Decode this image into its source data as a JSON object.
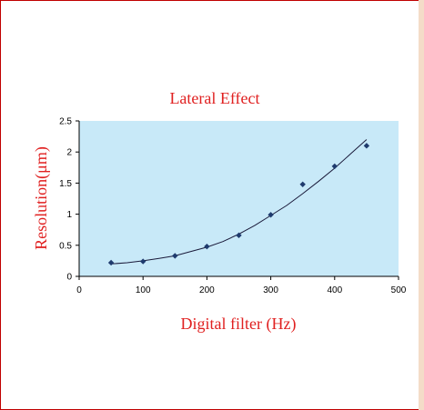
{
  "chart_data": {
    "type": "scatter",
    "title": "Lateral Effect",
    "xlabel": "Digital filter (Hz)",
    "ylabel": "Resolution(μm)",
    "xlim": [
      0,
      500
    ],
    "ylim": [
      0,
      2.5
    ],
    "xticks": [
      "0",
      "100",
      "200",
      "300",
      "400",
      "500"
    ],
    "yticks": [
      "0",
      "0.5",
      "1",
      "1.5",
      "2",
      "2.5"
    ],
    "series": [
      {
        "x": [
          50,
          100,
          150,
          200,
          250,
          300,
          350,
          400,
          450
        ],
        "y": [
          0.22,
          0.24,
          0.33,
          0.48,
          0.66,
          0.99,
          1.48,
          1.77,
          2.1
        ]
      }
    ],
    "trendline": {
      "x": [
        50,
        75,
        100,
        125,
        150,
        175,
        200,
        225,
        250,
        275,
        300,
        325,
        350,
        375,
        400,
        425,
        450
      ],
      "y": [
        0.2,
        0.22,
        0.25,
        0.29,
        0.33,
        0.4,
        0.47,
        0.56,
        0.68,
        0.82,
        0.98,
        1.14,
        1.33,
        1.53,
        1.74,
        1.97,
        2.2
      ]
    },
    "grid": false,
    "legend": "none",
    "colors": {
      "plot_background": "#c8e9f8",
      "marker": "#1f3b6e",
      "trendline": "#1a1a3a",
      "text_accent": "#e02020"
    }
  }
}
